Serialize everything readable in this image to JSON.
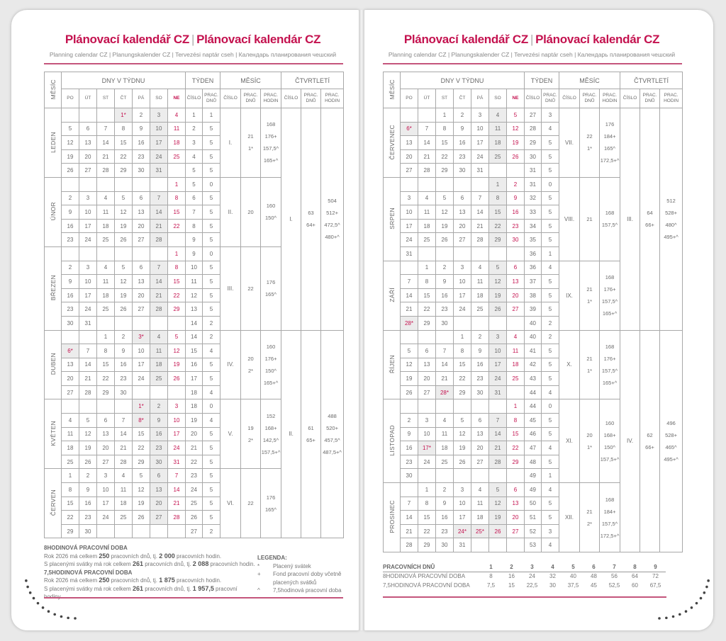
{
  "header": {
    "title_a": "Plánovací kalendář CZ",
    "title_b": "Plánovací kalendár CZ",
    "subtitle": "Planning calendar CZ | Planungskalender CZ | Tervezési naptár cseh | Календарь планирования чешский"
  },
  "table_headers": {
    "month_col": "MĚSÍC",
    "days_group": "DNY V TÝDNU",
    "week_group": "TÝDEN",
    "month_group": "MĚSÍC",
    "quarter_group": "ČTVRTLETÍ",
    "weekdays": [
      "PO",
      "ÚT",
      "ST",
      "ČT",
      "PÁ",
      "SO",
      "NE"
    ],
    "number": "ČÍSLO",
    "work_days": "PRAC. DNŮ",
    "work_hours": "PRAC. HODIN"
  },
  "colors": {
    "accent": "#c4124f",
    "weekend_fill": "#ececec",
    "border": "#a8a8a8"
  },
  "pages": [
    {
      "months": [
        {
          "name": "LEDEN",
          "first_weekday": 3,
          "days": 31,
          "holidays": [
            1
          ],
          "holidays_no_star": [],
          "weeks": [
            [
              1,
              1
            ],
            [
              2,
              5
            ],
            [
              3,
              5
            ],
            [
              4,
              5
            ],
            [
              5,
              5
            ]
          ],
          "number": "I.",
          "work_days": [
            "21",
            "1*"
          ],
          "hours": [
            "168",
            "176+",
            "157,5^",
            "165+^"
          ]
        },
        {
          "name": "ÚNOR",
          "first_weekday": 6,
          "days": 28,
          "holidays": [],
          "holidays_no_star": [],
          "weeks": [
            [
              5,
              0
            ],
            [
              6,
              5
            ],
            [
              7,
              5
            ],
            [
              8,
              5
            ],
            [
              9,
              5
            ]
          ],
          "number": "II.",
          "work_days": [
            "20"
          ],
          "hours": [
            "160",
            "150^"
          ]
        },
        {
          "name": "BŘEZEN",
          "first_weekday": 6,
          "days": 31,
          "holidays": [],
          "holidays_no_star": [],
          "weeks": [
            [
              9,
              0
            ],
            [
              10,
              5
            ],
            [
              11,
              5
            ],
            [
              12,
              5
            ],
            [
              13,
              5
            ],
            [
              14,
              2
            ]
          ],
          "number": "III.",
          "work_days": [
            "22"
          ],
          "hours": [
            "176",
            "165^"
          ]
        },
        {
          "name": "DUBEN",
          "first_weekday": 2,
          "days": 30,
          "holidays": [
            3,
            6
          ],
          "holidays_no_star": [],
          "weeks": [
            [
              14,
              2
            ],
            [
              15,
              4
            ],
            [
              16,
              5
            ],
            [
              17,
              5
            ],
            [
              18,
              4
            ]
          ],
          "number": "IV.",
          "work_days": [
            "20",
            "2*"
          ],
          "hours": [
            "160",
            "176+",
            "150^",
            "165+^"
          ]
        },
        {
          "name": "KVĚTEN",
          "first_weekday": 4,
          "days": 31,
          "holidays": [
            1,
            8
          ],
          "holidays_no_star": [],
          "weeks": [
            [
              18,
              0
            ],
            [
              19,
              4
            ],
            [
              20,
              5
            ],
            [
              21,
              5
            ],
            [
              22,
              5
            ]
          ],
          "number": "V.",
          "work_days": [
            "19",
            "2*"
          ],
          "hours": [
            "152",
            "168+",
            "142,5^",
            "157,5+^"
          ]
        },
        {
          "name": "ČERVEN",
          "first_weekday": 0,
          "days": 30,
          "holidays": [],
          "holidays_no_star": [],
          "weeks": [
            [
              23,
              5
            ],
            [
              24,
              5
            ],
            [
              25,
              5
            ],
            [
              26,
              5
            ],
            [
              27,
              2
            ]
          ],
          "number": "VI.",
          "work_days": [
            "22"
          ],
          "hours": [
            "176",
            "165^"
          ]
        }
      ],
      "quarters": [
        {
          "number": "I.",
          "work_days": [
            "63",
            "64+"
          ],
          "hours": [
            "504",
            "512+",
            "472,5^",
            "480+^"
          ]
        },
        {
          "number": "II.",
          "work_days": [
            "61",
            "65+"
          ],
          "hours": [
            "488",
            "520+",
            "457,5^",
            "487,5+^"
          ]
        }
      ]
    },
    {
      "months": [
        {
          "name": "ČERVENEC",
          "first_weekday": 2,
          "days": 31,
          "holidays": [
            6
          ],
          "holidays_no_star": [
            5
          ],
          "weeks": [
            [
              27,
              3
            ],
            [
              28,
              4
            ],
            [
              29,
              5
            ],
            [
              30,
              5
            ],
            [
              31,
              5
            ]
          ],
          "number": "VII.",
          "work_days": [
            "22",
            "1*"
          ],
          "hours": [
            "176",
            "184+",
            "165^",
            "172,5+^"
          ]
        },
        {
          "name": "SRPEN",
          "first_weekday": 5,
          "days": 31,
          "holidays": [],
          "holidays_no_star": [],
          "weeks": [
            [
              31,
              0
            ],
            [
              32,
              5
            ],
            [
              33,
              5
            ],
            [
              34,
              5
            ],
            [
              35,
              5
            ],
            [
              36,
              1
            ]
          ],
          "number": "VIII.",
          "work_days": [
            "21"
          ],
          "hours": [
            "168",
            "157,5^"
          ]
        },
        {
          "name": "ZÁŘÍ",
          "first_weekday": 1,
          "days": 30,
          "holidays": [
            28
          ],
          "holidays_no_star": [],
          "weeks": [
            [
              36,
              4
            ],
            [
              37,
              5
            ],
            [
              38,
              5
            ],
            [
              39,
              5
            ],
            [
              40,
              2
            ]
          ],
          "number": "IX.",
          "work_days": [
            "21",
            "1*"
          ],
          "hours": [
            "168",
            "176+",
            "157,5^",
            "165+^"
          ]
        },
        {
          "name": "ŘÍJEN",
          "first_weekday": 3,
          "days": 31,
          "holidays": [
            28
          ],
          "holidays_no_star": [],
          "weeks": [
            [
              40,
              2
            ],
            [
              41,
              5
            ],
            [
              42,
              5
            ],
            [
              43,
              5
            ],
            [
              44,
              4
            ]
          ],
          "number": "X.",
          "work_days": [
            "21",
            "1*"
          ],
          "hours": [
            "168",
            "176+",
            "157,5^",
            "165+^"
          ]
        },
        {
          "name": "LISTOPAD",
          "first_weekday": 6,
          "days": 30,
          "holidays": [
            17
          ],
          "holidays_no_star": [],
          "weeks": [
            [
              44,
              0
            ],
            [
              45,
              5
            ],
            [
              46,
              5
            ],
            [
              47,
              4
            ],
            [
              48,
              5
            ],
            [
              49,
              1
            ]
          ],
          "number": "XI.",
          "work_days": [
            "20",
            "1*"
          ],
          "hours": [
            "160",
            "168+",
            "150^",
            "157,5+^"
          ]
        },
        {
          "name": "PROSINEC",
          "first_weekday": 1,
          "days": 31,
          "holidays": [
            24,
            25
          ],
          "holidays_no_star": [
            26
          ],
          "weeks": [
            [
              49,
              4
            ],
            [
              50,
              5
            ],
            [
              51,
              5
            ],
            [
              52,
              3
            ],
            [
              53,
              4
            ]
          ],
          "number": "XII.",
          "work_days": [
            "21",
            "2*"
          ],
          "hours": [
            "168",
            "184+",
            "157,5^",
            "172,5+^"
          ]
        }
      ],
      "quarters": [
        {
          "number": "III.",
          "work_days": [
            "64",
            "66+"
          ],
          "hours": [
            "512",
            "528+",
            "480^",
            "495+^"
          ]
        },
        {
          "number": "IV.",
          "work_days": [
            "62",
            "66+"
          ],
          "hours": [
            "496",
            "528+",
            "465^",
            "495+^"
          ]
        }
      ]
    }
  ],
  "footer_left": {
    "section1_title": "8HODINOVÁ PRACOVNÍ DOBA",
    "section1_lines": [
      [
        {
          "t": "Rok 2026 má celkem "
        },
        {
          "t": "250",
          "b": true
        },
        {
          "t": " pracovních dnů, tj. "
        },
        {
          "t": "2 000",
          "b": true
        },
        {
          "t": " pracovních hodin."
        }
      ],
      [
        {
          "t": "S placenými svátky má rok celkem "
        },
        {
          "t": "261",
          "b": true
        },
        {
          "t": " pracovních dnů, tj. "
        },
        {
          "t": "2 088",
          "b": true
        },
        {
          "t": " pracovních hodin."
        }
      ]
    ],
    "section2_title": "7,5HODINOVÁ PRACOVNÍ DOBA",
    "section2_lines": [
      [
        {
          "t": "Rok 2026 má celkem "
        },
        {
          "t": "250",
          "b": true
        },
        {
          "t": " pracovních dnů, tj. "
        },
        {
          "t": "1 875",
          "b": true
        },
        {
          "t": " pracovních hodin."
        }
      ],
      [
        {
          "t": "S placenými svátky má rok celkem "
        },
        {
          "t": "261",
          "b": true
        },
        {
          "t": " pracovních dnů, tj. "
        },
        {
          "t": "1 957,5",
          "b": true
        },
        {
          "t": " pracovní hodiny."
        }
      ]
    ],
    "legend_title": "LEGENDA:",
    "legend": [
      {
        "symbol": "*",
        "text": "Placený svátek"
      },
      {
        "symbol": "+",
        "text": "Fond pracovní doby včetně placených svátků"
      },
      {
        "symbol": "^",
        "text": "7,5hodinová pracovní doba"
      }
    ]
  },
  "footer_right": {
    "header": "PRACOVNÍCH DNŮ",
    "days": [
      "1",
      "2",
      "3",
      "4",
      "5",
      "6",
      "7",
      "8",
      "9"
    ],
    "rows": [
      {
        "label": "8HODINOVÁ PRACOVNÍ DOBA",
        "values": [
          "8",
          "16",
          "24",
          "32",
          "40",
          "48",
          "56",
          "64",
          "72"
        ]
      },
      {
        "label": "7,5HODINOVÁ PRACOVNÍ DOBA",
        "values": [
          "7,5",
          "15",
          "22,5",
          "30",
          "37,5",
          "45",
          "52,5",
          "60",
          "67,5"
        ]
      }
    ]
  }
}
